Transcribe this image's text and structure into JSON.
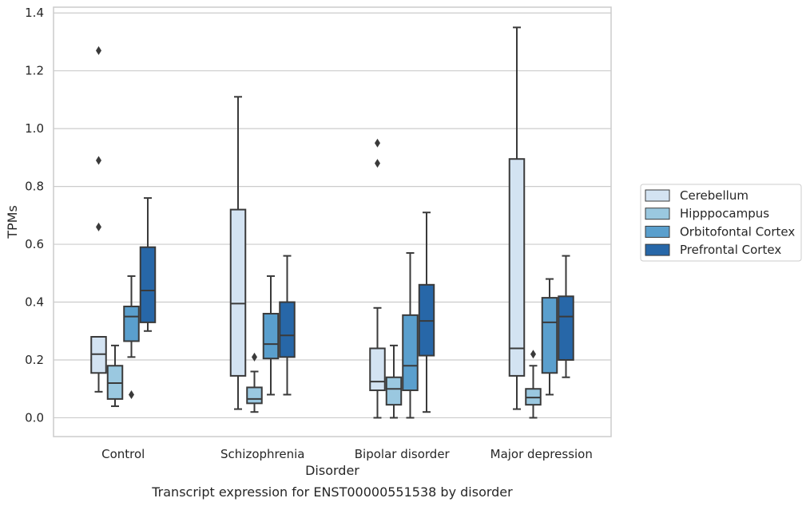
{
  "chart_data": {
    "type": "box",
    "caption": "Transcript expression for ENST00000551538 by disorder",
    "xlabel": "Disorder",
    "ylabel": "TPMs",
    "ylim": [
      -0.065,
      1.42
    ],
    "yticks": [
      0.0,
      0.2,
      0.4,
      0.6,
      0.8,
      1.0,
      1.2,
      1.4
    ],
    "ytick_labels": [
      "0.0",
      "0.2",
      "0.4",
      "0.6",
      "0.8",
      "1.0",
      "1.2",
      "1.4"
    ],
    "grid": true,
    "legend_position": "right",
    "categories": [
      "Control",
      "Schizophrenia",
      "Bipolar disorder",
      "Major depression"
    ],
    "series": [
      {
        "name": "Cerebellum",
        "color": "#d3e3f2",
        "boxes": [
          {
            "whisker_low": 0.09,
            "q1": 0.155,
            "median": 0.22,
            "q3": 0.28,
            "whisker_high": 0.28,
            "outliers": [
              0.66,
              0.89,
              1.27
            ]
          },
          {
            "whisker_low": 0.03,
            "q1": 0.145,
            "median": 0.395,
            "q3": 0.72,
            "whisker_high": 1.11,
            "outliers": []
          },
          {
            "whisker_low": 0.0,
            "q1": 0.095,
            "median": 0.125,
            "q3": 0.24,
            "whisker_high": 0.38,
            "outliers": [
              0.88,
              0.95
            ]
          },
          {
            "whisker_low": 0.03,
            "q1": 0.145,
            "median": 0.24,
            "q3": 0.895,
            "whisker_high": 1.35,
            "outliers": []
          }
        ]
      },
      {
        "name": "Hipppocampus",
        "color": "#9ac8e0",
        "boxes": [
          {
            "whisker_low": 0.04,
            "q1": 0.065,
            "median": 0.12,
            "q3": 0.18,
            "whisker_high": 0.25,
            "outliers": []
          },
          {
            "whisker_low": 0.02,
            "q1": 0.05,
            "median": 0.065,
            "q3": 0.105,
            "whisker_high": 0.16,
            "outliers": [
              0.21
            ]
          },
          {
            "whisker_low": 0.0,
            "q1": 0.045,
            "median": 0.1,
            "q3": 0.14,
            "whisker_high": 0.25,
            "outliers": []
          },
          {
            "whisker_low": 0.0,
            "q1": 0.045,
            "median": 0.07,
            "q3": 0.1,
            "whisker_high": 0.18,
            "outliers": [
              0.22
            ]
          }
        ]
      },
      {
        "name": "Orbitofontal Cortex",
        "color": "#5a9fcd",
        "boxes": [
          {
            "whisker_low": 0.21,
            "q1": 0.265,
            "median": 0.35,
            "q3": 0.385,
            "whisker_high": 0.49,
            "outliers": [
              0.08
            ]
          },
          {
            "whisker_low": 0.08,
            "q1": 0.205,
            "median": 0.255,
            "q3": 0.36,
            "whisker_high": 0.49,
            "outliers": []
          },
          {
            "whisker_low": 0.0,
            "q1": 0.095,
            "median": 0.18,
            "q3": 0.355,
            "whisker_high": 0.57,
            "outliers": []
          },
          {
            "whisker_low": 0.08,
            "q1": 0.155,
            "median": 0.33,
            "q3": 0.415,
            "whisker_high": 0.48,
            "outliers": []
          }
        ]
      },
      {
        "name": "Prefrontal Cortex",
        "color": "#2767a8",
        "boxes": [
          {
            "whisker_low": 0.3,
            "q1": 0.33,
            "median": 0.44,
            "q3": 0.59,
            "whisker_high": 0.76,
            "outliers": []
          },
          {
            "whisker_low": 0.08,
            "q1": 0.21,
            "median": 0.285,
            "q3": 0.4,
            "whisker_high": 0.56,
            "outliers": []
          },
          {
            "whisker_low": 0.02,
            "q1": 0.215,
            "median": 0.335,
            "q3": 0.46,
            "whisker_high": 0.71,
            "outliers": []
          },
          {
            "whisker_low": 0.14,
            "q1": 0.2,
            "median": 0.35,
            "q3": 0.42,
            "whisker_high": 0.56,
            "outliers": []
          }
        ]
      }
    ]
  }
}
